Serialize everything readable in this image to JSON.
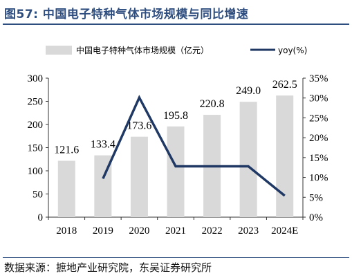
{
  "header": {
    "title": "图57:  中国电子特种气体市场规模与同比增速"
  },
  "footer": {
    "source": "数据来源：摭地产业研究院，东吴证券研究所"
  },
  "colors": {
    "bar": "#d9d9d9",
    "line": "#1f3864",
    "title": "#2f4e80"
  },
  "chart_data": {
    "type": "bar",
    "categories": [
      "2018",
      "2019",
      "2020",
      "2021",
      "2022",
      "2023",
      "2024E"
    ],
    "series": [
      {
        "name": "中国电子特种气体市场规模（亿元）",
        "type": "bar",
        "axis": "left",
        "values": [
          121.6,
          133.4,
          173.6,
          195.8,
          220.8,
          249.0,
          262.5
        ],
        "data_labels": [
          "121.6",
          "133.4",
          "173.6",
          "195.8",
          "220.8",
          "249.0",
          "262.5"
        ]
      },
      {
        "name": "yoy(%)",
        "type": "line",
        "axis": "right",
        "values": [
          null,
          9.7,
          30.1,
          12.8,
          12.8,
          12.8,
          5.4
        ]
      }
    ],
    "left_axis": {
      "min": 0,
      "max": 300,
      "ticks": [
        0,
        50,
        100,
        150,
        200,
        250,
        300
      ],
      "tick_labels": [
        "0",
        "50",
        "100",
        "150",
        "200",
        "250",
        "300"
      ]
    },
    "right_axis": {
      "min": 0,
      "max": 35,
      "ticks": [
        0,
        5,
        10,
        15,
        20,
        25,
        30,
        35
      ],
      "tick_labels": [
        "0%",
        "5%",
        "10%",
        "15%",
        "20%",
        "25%",
        "30%",
        "35%"
      ]
    },
    "legend_position": "top",
    "grid": false
  }
}
